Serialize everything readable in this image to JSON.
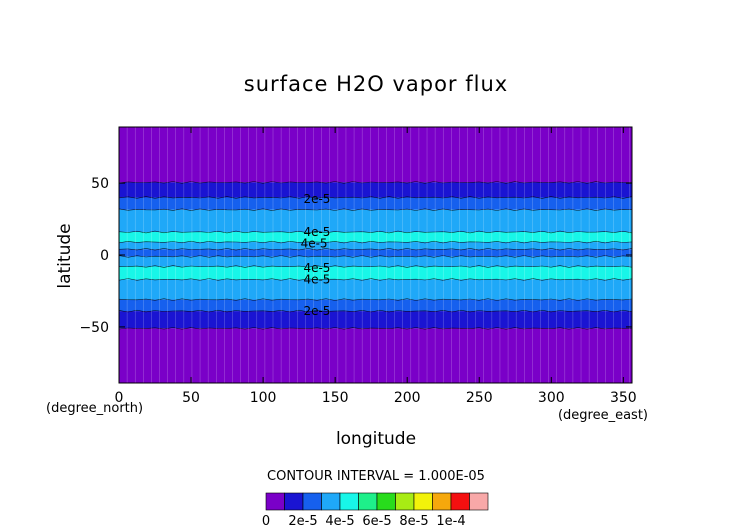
{
  "chart_data": {
    "type": "heatmap",
    "title": "surface H2O vapor flux",
    "xlabel": "longitude",
    "ylabel": "latitude",
    "x_units": "(degree_east)",
    "y_units": "(degree_north)",
    "xlim": [
      0,
      356
    ],
    "ylim": [
      -89,
      89
    ],
    "x_ticks": [
      0,
      50,
      100,
      150,
      200,
      250,
      300,
      350
    ],
    "y_ticks": [
      -50,
      0,
      50
    ],
    "contour_interval_text": "CONTOUR INTERVAL = 1.000E-05",
    "bands": [
      {
        "lat_min": 50.5,
        "lat_max": 89,
        "value": 5e-06
      },
      {
        "lat_min": 40,
        "lat_max": 50.5,
        "value": 1.5e-05
      },
      {
        "lat_min": 31.5,
        "lat_max": 40,
        "value": 2.5e-05
      },
      {
        "lat_min": 16,
        "lat_max": 31.5,
        "value": 3.5e-05
      },
      {
        "lat_min": 9,
        "lat_max": 16,
        "value": 4.5e-05
      },
      {
        "lat_min": 4,
        "lat_max": 9,
        "value": 3.5e-05
      },
      {
        "lat_min": -1,
        "lat_max": 4,
        "value": 2.5e-05
      },
      {
        "lat_min": -8,
        "lat_max": -1,
        "value": 3.5e-05
      },
      {
        "lat_min": -17,
        "lat_max": -8,
        "value": 4.5e-05
      },
      {
        "lat_min": -31,
        "lat_max": -17,
        "value": 3.5e-05
      },
      {
        "lat_min": -39,
        "lat_max": -31,
        "value": 2.5e-05
      },
      {
        "lat_min": -51,
        "lat_max": -39,
        "value": 1.5e-05
      },
      {
        "lat_min": -89,
        "lat_max": -51,
        "value": 5e-06
      }
    ],
    "contour_labels": [
      {
        "text": "2e-5",
        "lon": 128,
        "lat": 39
      },
      {
        "text": "4e-5",
        "lon": 128,
        "lat": 16
      },
      {
        "text": "4e-5",
        "lon": 126,
        "lat": 8
      },
      {
        "text": "4e-5",
        "lon": 128,
        "lat": -9
      },
      {
        "text": "4e-5",
        "lon": 128,
        "lat": -17
      },
      {
        "text": "2e-5",
        "lon": 128,
        "lat": -39
      }
    ],
    "colorbar": {
      "colors": [
        "#7a00c8",
        "#1a14d2",
        "#1660ee",
        "#1fa8f8",
        "#18f6e8",
        "#1ef08a",
        "#28dc1c",
        "#a8ec14",
        "#f2f20a",
        "#f6a80c",
        "#f41010",
        "#f8a8a8"
      ],
      "labels": [
        "0",
        "2e-5",
        "4e-5",
        "6e-5",
        "8e-5",
        "1e-4"
      ]
    }
  }
}
